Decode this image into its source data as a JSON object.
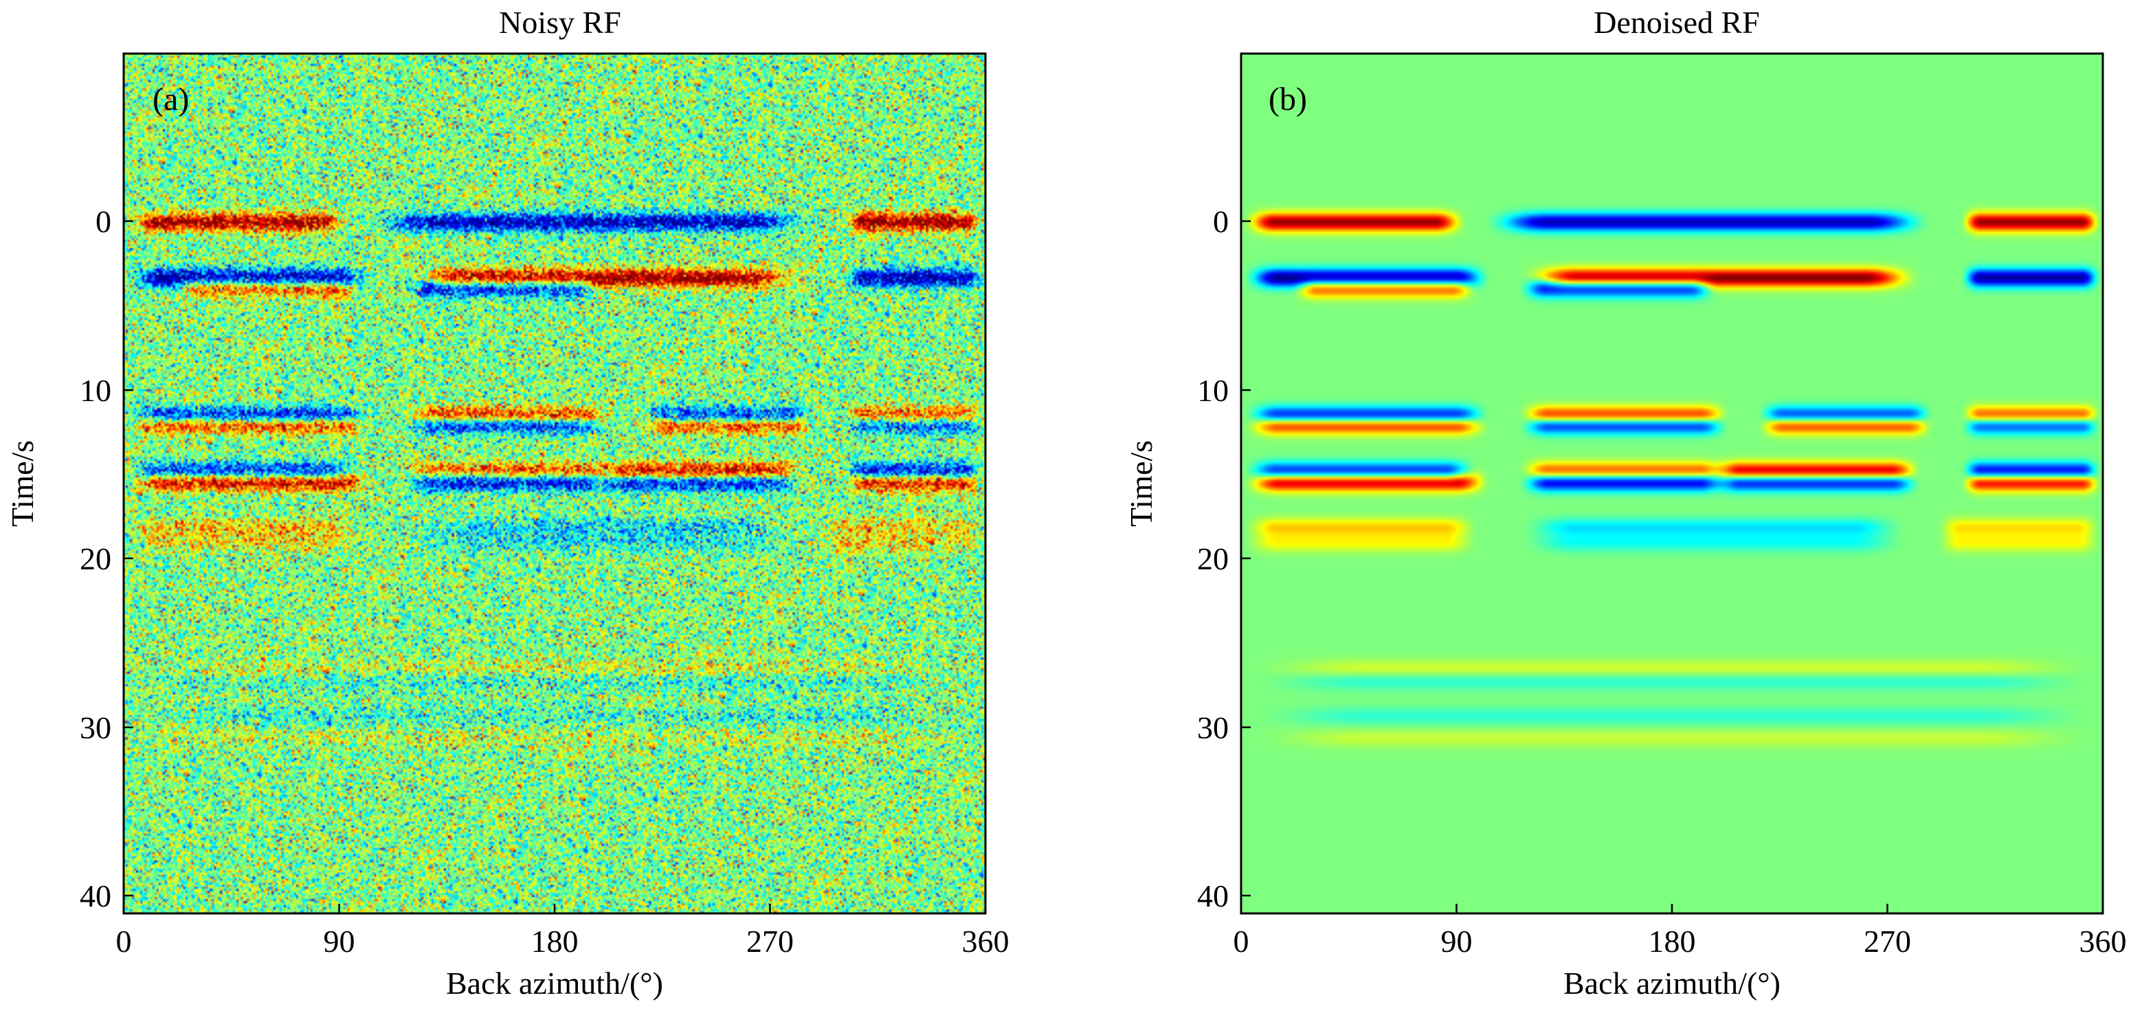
{
  "colors": {
    "background": "#7fff7f",
    "colormap": [
      "#00008f",
      "#0000ff",
      "#00ffff",
      "#7fff7f",
      "#ffff00",
      "#ff0000",
      "#800000"
    ],
    "axis": "#000000"
  },
  "chart_data": [
    {
      "type": "heatmap",
      "panel_label": "(a)",
      "title": "Noisy RF",
      "xlabel": "Back azimuth/(°)",
      "ylabel": "Time/s",
      "xlim": [
        0,
        360
      ],
      "ylim": [
        -10,
        41
      ],
      "y_reversed": true,
      "xticks": [
        0,
        90,
        180,
        270,
        360
      ],
      "yticks": [
        0,
        10,
        20,
        30,
        40
      ],
      "xtick_labels": [
        "0",
        "90",
        "180",
        "270",
        "360"
      ],
      "ytick_labels": [
        "0",
        "10",
        "20",
        "30",
        "40"
      ],
      "noise": 0.55,
      "events": [
        {
          "t": 0,
          "segments": [
            {
              "x0": 0,
              "x1": 95,
              "a": 0.95
            },
            {
              "x0": 100,
              "x1": 290,
              "a": -0.9
            },
            {
              "x0": 300,
              "x1": 360,
              "a": 0.95
            }
          ]
        },
        {
          "t": 3.3,
          "segments": [
            {
              "x0": 0,
              "x1": 105,
              "a": -1.0
            },
            {
              "x0": 115,
              "x1": 285,
              "a": 1.0
            },
            {
              "x0": 300,
              "x1": 360,
              "a": -0.95
            }
          ]
        },
        {
          "t": 3.9,
          "segments": [
            {
              "x0": 20,
              "x1": 100,
              "a": 0.7
            },
            {
              "x0": 115,
              "x1": 200,
              "a": -0.8
            }
          ]
        },
        {
          "t": 11.5,
          "segments": [
            {
              "x0": 0,
              "x1": 105,
              "a": -0.9
            },
            {
              "x0": 115,
              "x1": 205,
              "a": 0.85
            },
            {
              "x0": 215,
              "x1": 290,
              "a": -0.8
            },
            {
              "x0": 300,
              "x1": 360,
              "a": 0.75
            }
          ]
        },
        {
          "t": 12.0,
          "segments": [
            {
              "x0": 0,
              "x1": 105,
              "a": 0.85
            },
            {
              "x0": 115,
              "x1": 205,
              "a": -0.85
            },
            {
              "x0": 215,
              "x1": 290,
              "a": 0.8
            },
            {
              "x0": 300,
              "x1": 360,
              "a": -0.75
            }
          ]
        },
        {
          "t": 14.8,
          "segments": [
            {
              "x0": 0,
              "x1": 100,
              "a": -0.8
            },
            {
              "x0": 115,
              "x1": 205,
              "a": 0.7
            },
            {
              "x0": 195,
              "x1": 285,
              "a": 0.95
            },
            {
              "x0": 300,
              "x1": 360,
              "a": -0.9
            }
          ]
        },
        {
          "t": 15.4,
          "segments": [
            {
              "x0": 0,
              "x1": 105,
              "a": 0.95
            },
            {
              "x0": 115,
              "x1": 205,
              "a": -0.9
            },
            {
              "x0": 195,
              "x1": 285,
              "a": -0.85
            },
            {
              "x0": 300,
              "x1": 360,
              "a": 0.9
            }
          ]
        },
        {
          "t": 18.1,
          "segments": [
            {
              "x0": 0,
              "x1": 100,
              "a": 0.35
            },
            {
              "x0": 115,
              "x1": 280,
              "a": -0.3
            },
            {
              "x0": 290,
              "x1": 360,
              "a": 0.3
            }
          ]
        },
        {
          "t": 19.0,
          "segments": [
            {
              "x0": 0,
              "x1": 100,
              "a": 0.25
            },
            {
              "x0": 115,
              "x1": 280,
              "a": -0.22
            },
            {
              "x0": 290,
              "x1": 360,
              "a": 0.25
            }
          ]
        },
        {
          "t": 26.5,
          "segments": [
            {
              "x0": 0,
              "x1": 360,
              "a": 0.18
            }
          ]
        },
        {
          "t": 27.2,
          "segments": [
            {
              "x0": 0,
              "x1": 360,
              "a": -0.18
            }
          ]
        },
        {
          "t": 29.3,
          "segments": [
            {
              "x0": 0,
              "x1": 360,
              "a": -0.16
            }
          ]
        },
        {
          "t": 30.6,
          "segments": [
            {
              "x0": 0,
              "x1": 360,
              "a": 0.14
            }
          ]
        }
      ]
    },
    {
      "type": "heatmap",
      "panel_label": "(b)",
      "title": "Denoised  RF",
      "xlabel": "Back azimuth/(°)",
      "ylabel": "Time/s",
      "xlim": [
        0,
        360
      ],
      "ylim": [
        -10,
        41
      ],
      "y_reversed": true,
      "xticks": [
        0,
        90,
        180,
        270,
        360
      ],
      "yticks": [
        0,
        10,
        20,
        30,
        40
      ],
      "xtick_labels": [
        "0",
        "90",
        "180",
        "270",
        "360"
      ],
      "ytick_labels": [
        "0",
        "10",
        "20",
        "30",
        "40"
      ],
      "noise": 0.0,
      "events": [
        {
          "t": 0,
          "segments": [
            {
              "x0": 0,
              "x1": 95,
              "a": 0.95
            },
            {
              "x0": 100,
              "x1": 290,
              "a": -0.9
            },
            {
              "x0": 300,
              "x1": 360,
              "a": 0.95
            }
          ]
        },
        {
          "t": 3.3,
          "segments": [
            {
              "x0": 0,
              "x1": 105,
              "a": -1.0
            },
            {
              "x0": 115,
              "x1": 285,
              "a": 1.0
            },
            {
              "x0": 300,
              "x1": 360,
              "a": -0.95
            }
          ]
        },
        {
          "t": 3.9,
          "segments": [
            {
              "x0": 20,
              "x1": 100,
              "a": 0.7
            },
            {
              "x0": 115,
              "x1": 200,
              "a": -0.8
            }
          ]
        },
        {
          "t": 11.5,
          "segments": [
            {
              "x0": 0,
              "x1": 105,
              "a": -0.9
            },
            {
              "x0": 115,
              "x1": 205,
              "a": 0.85
            },
            {
              "x0": 215,
              "x1": 290,
              "a": -0.8
            },
            {
              "x0": 300,
              "x1": 360,
              "a": 0.75
            }
          ]
        },
        {
          "t": 12.0,
          "segments": [
            {
              "x0": 0,
              "x1": 105,
              "a": 0.85
            },
            {
              "x0": 115,
              "x1": 205,
              "a": -0.85
            },
            {
              "x0": 215,
              "x1": 290,
              "a": 0.8
            },
            {
              "x0": 300,
              "x1": 360,
              "a": -0.75
            }
          ]
        },
        {
          "t": 14.8,
          "segments": [
            {
              "x0": 0,
              "x1": 100,
              "a": -0.8
            },
            {
              "x0": 115,
              "x1": 205,
              "a": 0.7
            },
            {
              "x0": 195,
              "x1": 285,
              "a": 0.95
            },
            {
              "x0": 300,
              "x1": 360,
              "a": -0.9
            }
          ]
        },
        {
          "t": 15.4,
          "segments": [
            {
              "x0": 0,
              "x1": 105,
              "a": 0.95
            },
            {
              "x0": 115,
              "x1": 205,
              "a": -0.9
            },
            {
              "x0": 195,
              "x1": 285,
              "a": -0.85
            },
            {
              "x0": 300,
              "x1": 360,
              "a": 0.9
            }
          ]
        },
        {
          "t": 18.1,
          "segments": [
            {
              "x0": 0,
              "x1": 100,
              "a": 0.35
            },
            {
              "x0": 115,
              "x1": 280,
              "a": -0.3
            },
            {
              "x0": 290,
              "x1": 360,
              "a": 0.3
            }
          ]
        },
        {
          "t": 19.0,
          "segments": [
            {
              "x0": 0,
              "x1": 100,
              "a": 0.25
            },
            {
              "x0": 115,
              "x1": 280,
              "a": -0.22
            },
            {
              "x0": 290,
              "x1": 360,
              "a": 0.25
            }
          ]
        },
        {
          "t": 26.5,
          "segments": [
            {
              "x0": 0,
              "x1": 360,
              "a": 0.18
            }
          ]
        },
        {
          "t": 27.2,
          "segments": [
            {
              "x0": 0,
              "x1": 360,
              "a": -0.18
            }
          ]
        },
        {
          "t": 29.3,
          "segments": [
            {
              "x0": 0,
              "x1": 360,
              "a": -0.16
            }
          ]
        },
        {
          "t": 30.6,
          "segments": [
            {
              "x0": 0,
              "x1": 360,
              "a": 0.14
            }
          ]
        }
      ]
    }
  ]
}
